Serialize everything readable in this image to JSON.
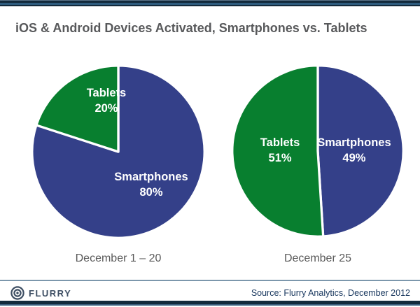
{
  "page": {
    "title": "iOS & Android Devices Activated, Smartphones vs. Tablets"
  },
  "footer": {
    "logo_text": "FLURRY",
    "source": "Source: Flurry Analytics, December 2012"
  },
  "colors": {
    "smartphones_blue": "#344089",
    "tablets_green": "#087f2f",
    "title_text": "#58595b",
    "caption_text": "#595959",
    "footer_navy": "#17365d",
    "border_navy": "#122a3c"
  },
  "chart_data": [
    {
      "type": "pie",
      "caption": "December 1 – 20",
      "start_angle_deg": 0,
      "direction": "clockwise",
      "labels_position": "inside",
      "slices": [
        {
          "label": "Smartphones",
          "value": 80,
          "pct_text": "80%",
          "color": "#344089"
        },
        {
          "label": "Tablets",
          "value": 20,
          "pct_text": "20%",
          "color": "#087f2f"
        }
      ]
    },
    {
      "type": "pie",
      "caption": "December 25",
      "start_angle_deg": 0,
      "direction": "clockwise",
      "labels_position": "inside",
      "slices": [
        {
          "label": "Smartphones",
          "value": 49,
          "pct_text": "49%",
          "color": "#344089"
        },
        {
          "label": "Tablets",
          "value": 51,
          "pct_text": "51%",
          "color": "#087f2f"
        }
      ]
    }
  ]
}
